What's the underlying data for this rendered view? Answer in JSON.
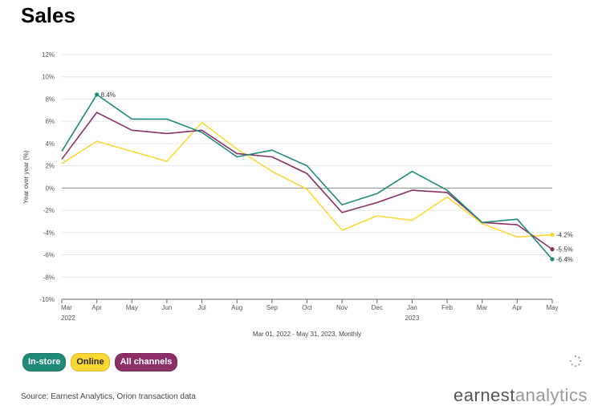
{
  "page": {
    "title": "Sales",
    "source": "Source: Earnest Analytics, Orion transaction data",
    "brand_a": "earnest",
    "brand_b": "analytics",
    "loader_icon": "spinner-icon"
  },
  "colors": {
    "in_store": "#1f8a78",
    "online": "#fdd835",
    "all_channels": "#8c2f66",
    "grid": "#e6e6e6",
    "zero_line": "#888888"
  },
  "legend": [
    {
      "label": "In-store",
      "key": "in_store"
    },
    {
      "label": "Online",
      "key": "online"
    },
    {
      "label": "All channels",
      "key": "all_channels"
    }
  ],
  "chart_data": {
    "type": "line",
    "title": "Sales",
    "subtitle": "Mar 01, 2022 - May 31, 2023, Monthly",
    "xlabel": "",
    "ylabel": "Year over year (%)",
    "ylim": [
      -10,
      12
    ],
    "yticks": [
      -10,
      -8,
      -6,
      -4,
      -2,
      0,
      2,
      4,
      6,
      8,
      10,
      12
    ],
    "ytick_labels": [
      "-10%",
      "-8%",
      "-6%",
      "-4%",
      "-2%",
      "0%",
      "2%",
      "4%",
      "6%",
      "8%",
      "10%",
      "12%"
    ],
    "categories": [
      "Mar",
      "Apr",
      "May",
      "Jun",
      "Jul",
      "Aug",
      "Sep",
      "Oct",
      "Nov",
      "Dec",
      "Jan",
      "Feb",
      "Mar",
      "Apr",
      "May"
    ],
    "year_labels": [
      {
        "index": 0,
        "label": "2022"
      },
      {
        "index": 10,
        "label": "2023"
      }
    ],
    "grid": true,
    "legend_position": "bottom-left",
    "series": [
      {
        "name": "In-store",
        "key": "in_store",
        "values": [
          3.3,
          8.4,
          6.2,
          6.2,
          5.0,
          2.8,
          3.4,
          2.0,
          -1.5,
          -0.5,
          1.5,
          -0.2,
          -3.1,
          -2.8,
          -6.4
        ]
      },
      {
        "name": "Online",
        "key": "online",
        "values": [
          2.2,
          4.2,
          3.3,
          2.4,
          5.9,
          3.5,
          1.5,
          -0.1,
          -3.8,
          -2.5,
          -2.9,
          -0.8,
          -3.2,
          -4.4,
          -4.2
        ]
      },
      {
        "name": "All channels",
        "key": "all_channels",
        "values": [
          2.6,
          6.8,
          5.2,
          4.9,
          5.2,
          3.1,
          2.8,
          1.3,
          -2.2,
          -1.3,
          -0.2,
          -0.4,
          -3.1,
          -3.3,
          -5.5
        ]
      }
    ],
    "annotations": [
      {
        "series": "in_store",
        "index": 1,
        "label": "8.4%"
      },
      {
        "series": "online",
        "index": 14,
        "label": "-4.2%"
      },
      {
        "series": "all_channels",
        "index": 14,
        "label": "-5.5%"
      },
      {
        "series": "in_store",
        "index": 14,
        "label": "-6.4%"
      }
    ]
  }
}
